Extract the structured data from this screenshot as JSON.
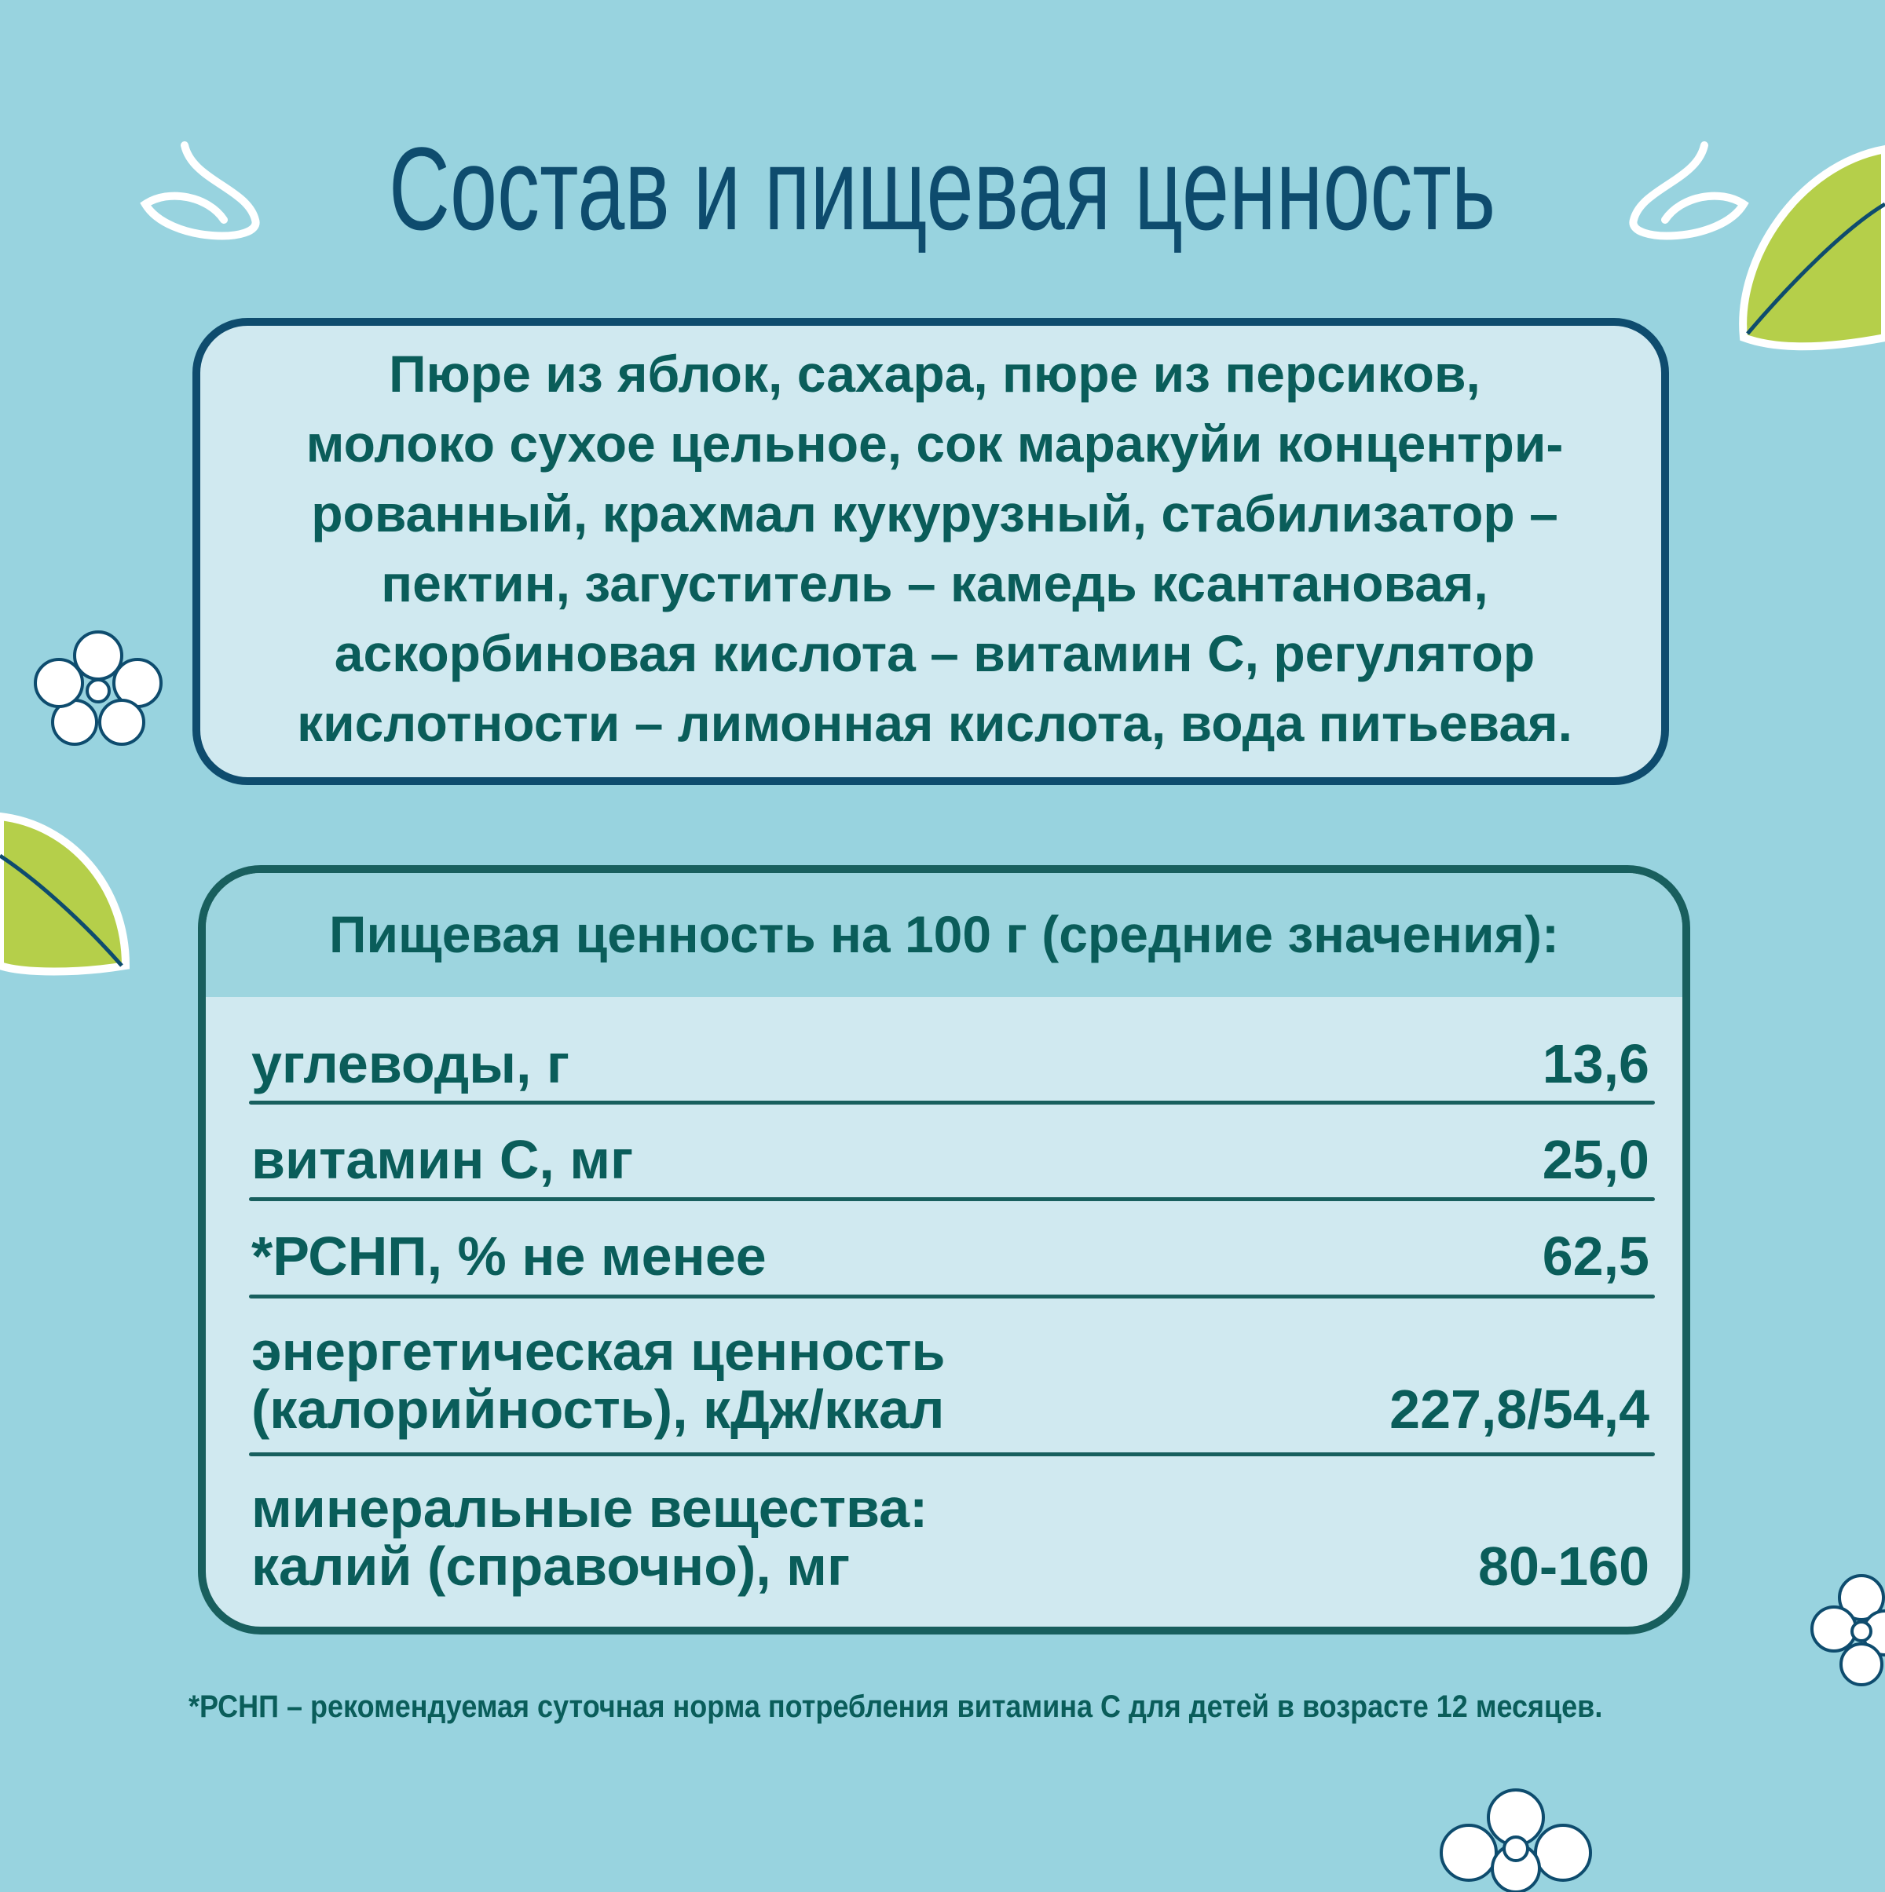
{
  "title": "Состав и пищевая ценность",
  "ingredients": [
    "Пюре из яблок, сахара, пюре из персиков,",
    "молоко сухое цельное, сок маракуйи концентри-",
    "рованный, крахмал кукурузный, стабилизатор –",
    "пектин, загуститель – камедь ксантановая,",
    "аскорбиновая кислота – витамин С, регулятор",
    "кислотности – лимонная кислота, вода питьевая."
  ],
  "nutrition": {
    "header": "Пищевая ценность на 100 г (средние значения):",
    "rows": [
      {
        "label": "углеводы, г",
        "label2": "",
        "value": "13,6"
      },
      {
        "label": "витамин С, мг",
        "label2": "",
        "value": "25,0"
      },
      {
        "label": "*РСНП, % не менее",
        "label2": "",
        "value": "62,5"
      },
      {
        "label": "энергетическая ценность",
        "label2": "(калорийность), кДж/ккал",
        "value": "227,8/54,4"
      },
      {
        "label": "минеральные вещества:",
        "label2": "калий (справочно), мг",
        "value": "80-160"
      }
    ]
  },
  "footnote": "*РСНП – рекомендуемая суточная норма потребления витамина С для детей в возрасте 12 месяцев.",
  "colors": {
    "background": "#98d3df",
    "panel": "#d0e9f0",
    "title": "#0e4c6e",
    "text": "#0a5d5a",
    "leaf": "#b5cf4a"
  }
}
